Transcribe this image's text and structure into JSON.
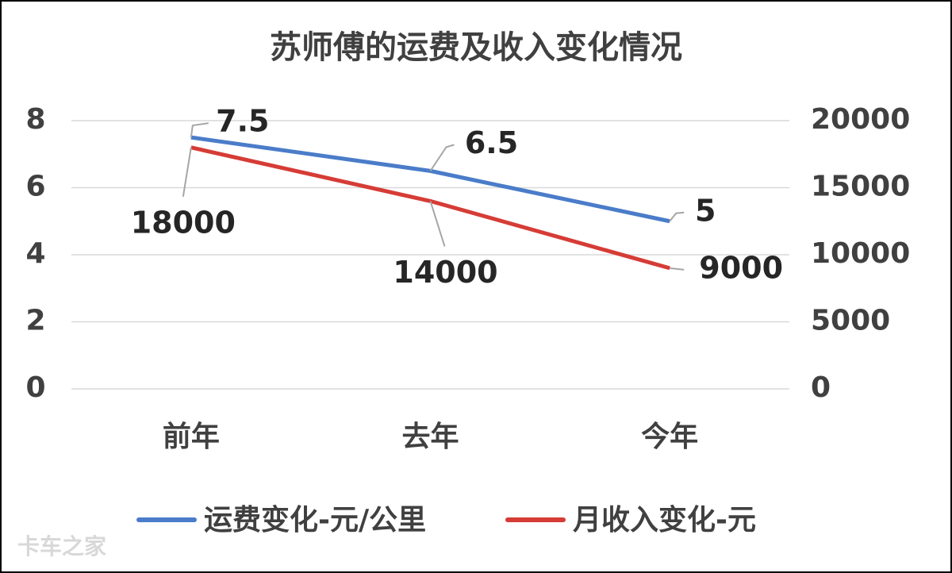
{
  "chart_data": {
    "type": "line",
    "title": "苏师傅的运费及收入变化情况",
    "categories": [
      "前年",
      "去年",
      "今年"
    ],
    "series": [
      {
        "name": "运费变化-元/公里",
        "color": "#4a7cc9",
        "values": [
          7.5,
          6.5,
          5
        ]
      },
      {
        "name": "月收入变化-元",
        "color": "#d63c36",
        "values": [
          18000,
          14000,
          9000
        ],
        "axis": "y2"
      }
    ],
    "ylim": [
      0,
      8
    ],
    "yticks": [
      0,
      2,
      4,
      6,
      8
    ],
    "y2lim": [
      0,
      20000
    ],
    "y2ticks": [
      0,
      5000,
      10000,
      15000,
      20000
    ],
    "grid": true,
    "legend": "bottom",
    "data_labels": true,
    "watermark": "卡车之家"
  }
}
